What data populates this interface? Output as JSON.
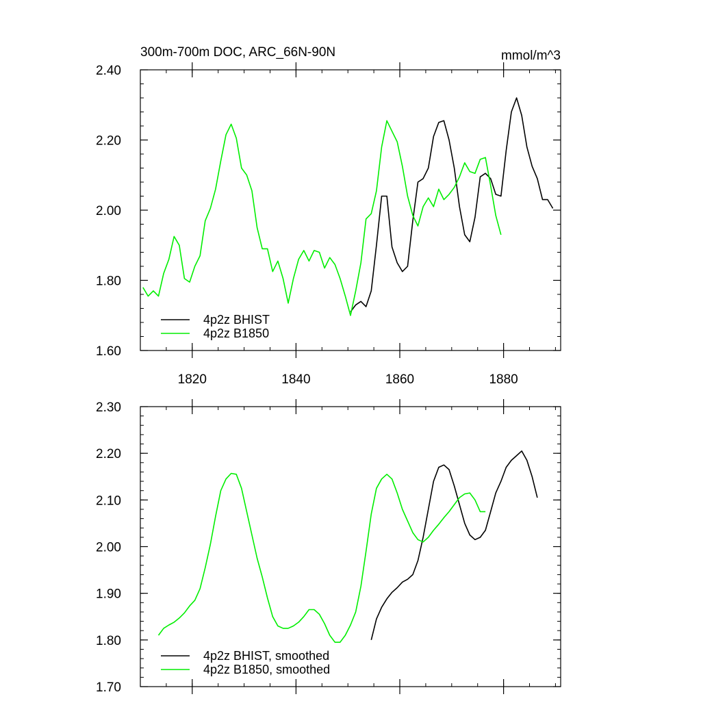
{
  "chart_data": [
    {
      "type": "line",
      "title": "300m-700m DOC, ARC_66N-90N",
      "units": "mmol/m^3",
      "xlim": [
        1810,
        1891
      ],
      "ylim": [
        1.6,
        2.4
      ],
      "x_ticks": [
        1820,
        1840,
        1860,
        1880
      ],
      "y_ticks": [
        1.6,
        1.8,
        2.0,
        2.2,
        2.4
      ],
      "y_tick_labels": [
        "1.60",
        "1.80",
        "2.00",
        "2.20",
        "2.40"
      ],
      "x_tick_labels": [
        "1820",
        "1840",
        "1860",
        "1880"
      ],
      "grid": false,
      "legend_position": "bottom-left",
      "series": [
        {
          "name": "4p2z BHIST",
          "color": "#000000",
          "x": [
            1850.5,
            1851.5,
            1852.5,
            1853.5,
            1854.5,
            1855.5,
            1856.5,
            1857.5,
            1858.5,
            1859.5,
            1860.5,
            1861.5,
            1862.5,
            1863.5,
            1864.5,
            1865.5,
            1866.5,
            1867.5,
            1868.5,
            1869.5,
            1870.5,
            1871.5,
            1872.5,
            1873.5,
            1874.5,
            1875.5,
            1876.5,
            1877.5,
            1878.5,
            1879.5,
            1880.5,
            1881.5,
            1882.5,
            1883.5,
            1884.5,
            1885.5,
            1886.5,
            1887.5,
            1888.5,
            1889.5
          ],
          "y": [
            1.71,
            1.73,
            1.74,
            1.725,
            1.77,
            1.9,
            2.04,
            2.04,
            1.895,
            1.85,
            1.825,
            1.84,
            1.97,
            2.08,
            2.09,
            2.12,
            2.21,
            2.25,
            2.255,
            2.2,
            2.12,
            2.01,
            1.93,
            1.91,
            1.98,
            2.095,
            2.105,
            2.09,
            2.045,
            2.04,
            2.17,
            2.28,
            2.32,
            2.27,
            2.18,
            2.125,
            2.09,
            2.03,
            2.03,
            2.005
          ]
        },
        {
          "name": "4p2z B1850",
          "color": "#00ee00",
          "x": [
            1810.5,
            1811.5,
            1812.5,
            1813.5,
            1814.5,
            1815.5,
            1816.5,
            1817.5,
            1818.5,
            1819.5,
            1820.5,
            1821.5,
            1822.5,
            1823.5,
            1824.5,
            1825.5,
            1826.5,
            1827.5,
            1828.5,
            1829.5,
            1830.5,
            1831.5,
            1832.5,
            1833.5,
            1834.5,
            1835.5,
            1836.5,
            1837.5,
            1838.5,
            1839.5,
            1840.5,
            1841.5,
            1842.5,
            1843.5,
            1844.5,
            1845.5,
            1846.5,
            1847.5,
            1848.5,
            1849.5,
            1850.5,
            1851.5,
            1852.5,
            1853.5,
            1854.5,
            1855.5,
            1856.5,
            1857.5,
            1858.5,
            1859.5,
            1860.5,
            1861.5,
            1862.5,
            1863.5,
            1864.5,
            1865.5,
            1866.5,
            1867.5,
            1868.5,
            1869.5,
            1870.5,
            1871.5,
            1872.5,
            1873.5,
            1874.5,
            1875.5,
            1876.5,
            1877.5,
            1878.5,
            1879.5
          ],
          "y": [
            1.78,
            1.755,
            1.77,
            1.755,
            1.82,
            1.86,
            1.925,
            1.9,
            1.805,
            1.795,
            1.84,
            1.87,
            1.97,
            2.005,
            2.06,
            2.14,
            2.215,
            2.245,
            2.205,
            2.12,
            2.1,
            2.055,
            1.95,
            1.89,
            1.89,
            1.825,
            1.855,
            1.805,
            1.735,
            1.805,
            1.86,
            1.885,
            1.855,
            1.885,
            1.88,
            1.835,
            1.865,
            1.845,
            1.805,
            1.755,
            1.7,
            1.77,
            1.85,
            1.975,
            1.99,
            2.055,
            2.18,
            2.255,
            2.225,
            2.195,
            2.125,
            2.04,
            1.985,
            1.955,
            2.01,
            2.035,
            2.01,
            2.06,
            2.03,
            2.045,
            2.065,
            2.095,
            2.135,
            2.11,
            2.105,
            2.145,
            2.15,
            2.07,
            1.985,
            1.93
          ]
        }
      ]
    },
    {
      "type": "line",
      "xlim": [
        1810,
        1891
      ],
      "ylim": [
        1.7,
        2.3
      ],
      "x_ticks": [
        1820,
        1840,
        1860,
        1880
      ],
      "y_ticks": [
        1.7,
        1.8,
        1.9,
        2.0,
        2.1,
        2.2,
        2.3
      ],
      "y_tick_labels": [
        "1.70",
        "1.80",
        "1.90",
        "2.00",
        "2.10",
        "2.20",
        "2.30"
      ],
      "grid": false,
      "legend_position": "bottom-left",
      "series": [
        {
          "name": "4p2z BHIST, smoothed",
          "color": "#000000",
          "x": [
            1854.5,
            1855.5,
            1856.5,
            1857.5,
            1858.5,
            1859.5,
            1860.5,
            1861.5,
            1862.5,
            1863.5,
            1864.5,
            1865.5,
            1866.5,
            1867.5,
            1868.5,
            1869.5,
            1870.5,
            1871.5,
            1872.5,
            1873.5,
            1874.5,
            1875.5,
            1876.5,
            1877.5,
            1878.5,
            1879.5,
            1880.5,
            1881.5,
            1882.5,
            1883.5,
            1884.5,
            1885.5,
            1886.5
          ],
          "y": [
            1.8,
            1.845,
            1.87,
            1.888,
            1.902,
            1.912,
            1.924,
            1.93,
            1.94,
            1.97,
            2.02,
            2.08,
            2.14,
            2.17,
            2.175,
            2.165,
            2.13,
            2.09,
            2.05,
            2.025,
            2.015,
            2.02,
            2.035,
            2.075,
            2.115,
            2.14,
            2.17,
            2.185,
            2.195,
            2.205,
            2.185,
            2.15,
            2.105
          ]
        },
        {
          "name": "4p2z B1850, smoothed",
          "color": "#00ee00",
          "x": [
            1813.5,
            1814.5,
            1815.5,
            1816.5,
            1817.5,
            1818.5,
            1819.5,
            1820.5,
            1821.5,
            1822.5,
            1823.5,
            1824.5,
            1825.5,
            1826.5,
            1827.5,
            1828.5,
            1829.5,
            1830.5,
            1831.5,
            1832.5,
            1833.5,
            1834.5,
            1835.5,
            1836.5,
            1837.5,
            1838.5,
            1839.5,
            1840.5,
            1841.5,
            1842.5,
            1843.5,
            1844.5,
            1845.5,
            1846.5,
            1847.5,
            1848.5,
            1849.5,
            1850.5,
            1851.5,
            1852.5,
            1853.5,
            1854.5,
            1855.5,
            1856.5,
            1857.5,
            1858.5,
            1859.5,
            1860.5,
            1861.5,
            1862.5,
            1863.5,
            1864.5,
            1865.5,
            1866.5,
            1867.5,
            1868.5,
            1869.5,
            1870.5,
            1871.5,
            1872.5,
            1873.5,
            1874.5,
            1875.5,
            1876.5
          ],
          "y": [
            1.81,
            1.825,
            1.832,
            1.838,
            1.847,
            1.858,
            1.873,
            1.885,
            1.91,
            1.955,
            2.005,
            2.065,
            2.12,
            2.145,
            2.157,
            2.155,
            2.125,
            2.075,
            2.025,
            1.975,
            1.935,
            1.89,
            1.85,
            1.83,
            1.825,
            1.825,
            1.83,
            1.838,
            1.85,
            1.865,
            1.865,
            1.855,
            1.835,
            1.81,
            1.795,
            1.795,
            1.81,
            1.832,
            1.86,
            1.915,
            1.99,
            2.07,
            2.125,
            2.145,
            2.155,
            2.145,
            2.115,
            2.08,
            2.055,
            2.03,
            2.015,
            2.01,
            2.02,
            2.035,
            2.048,
            2.062,
            2.075,
            2.09,
            2.105,
            2.113,
            2.115,
            2.1,
            2.075,
            2.075
          ]
        }
      ]
    }
  ]
}
